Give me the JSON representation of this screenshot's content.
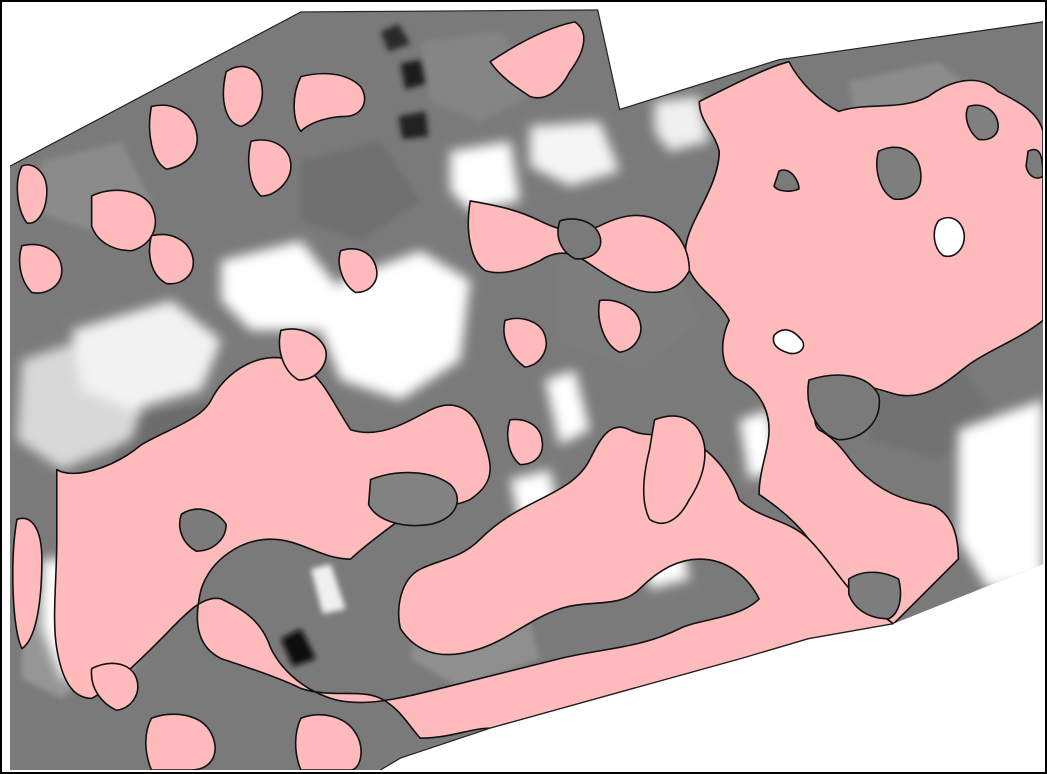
{
  "map": {
    "kind": "raster classification overlay",
    "legend_visible": false,
    "text_labels_visible": false,
    "colors": {
      "background": "#ffffff",
      "frame": "#000000",
      "highlight_class": "#ffbabb",
      "highlight_outline": "#111111",
      "raster_dark": "#1a1a1a",
      "raster_mid": "#7a7a7a",
      "raster_light": "#bdbdbd",
      "raster_white": "#ffffff"
    }
  }
}
